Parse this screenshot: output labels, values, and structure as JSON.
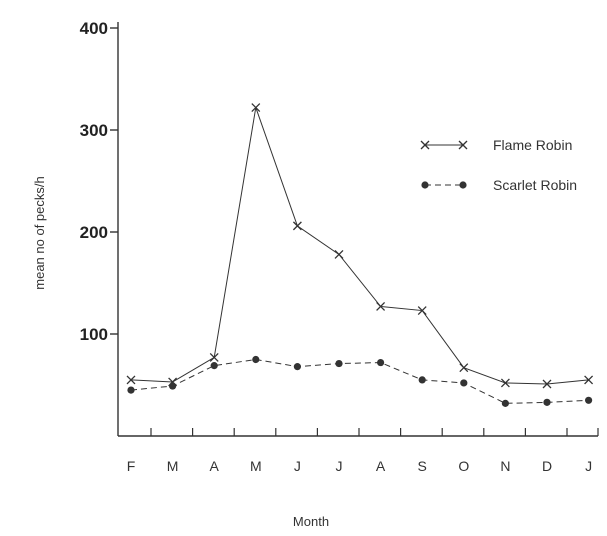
{
  "chart_data": {
    "type": "line",
    "title": "",
    "xlabel": "Month",
    "ylabel": "mean no of pecks/h",
    "ylim": [
      0,
      400
    ],
    "yticks": [
      100,
      200,
      300,
      400
    ],
    "categories": [
      "F",
      "M",
      "A",
      "M",
      "J",
      "J",
      "A",
      "S",
      "O",
      "N",
      "D",
      "J"
    ],
    "grid": false,
    "legend": "right",
    "series": [
      {
        "name": "Flame Robin",
        "marker": "cross",
        "line_style": "solid",
        "color": "#333333",
        "values": [
          55,
          53,
          77,
          322,
          206,
          178,
          127,
          123,
          67,
          52,
          51,
          55
        ]
      },
      {
        "name": "Scarlet Robin",
        "marker": "dot",
        "line_style": "dashed",
        "color": "#333333",
        "values": [
          45,
          49,
          69,
          75,
          68,
          71,
          72,
          55,
          52,
          32,
          33,
          35
        ]
      }
    ]
  }
}
